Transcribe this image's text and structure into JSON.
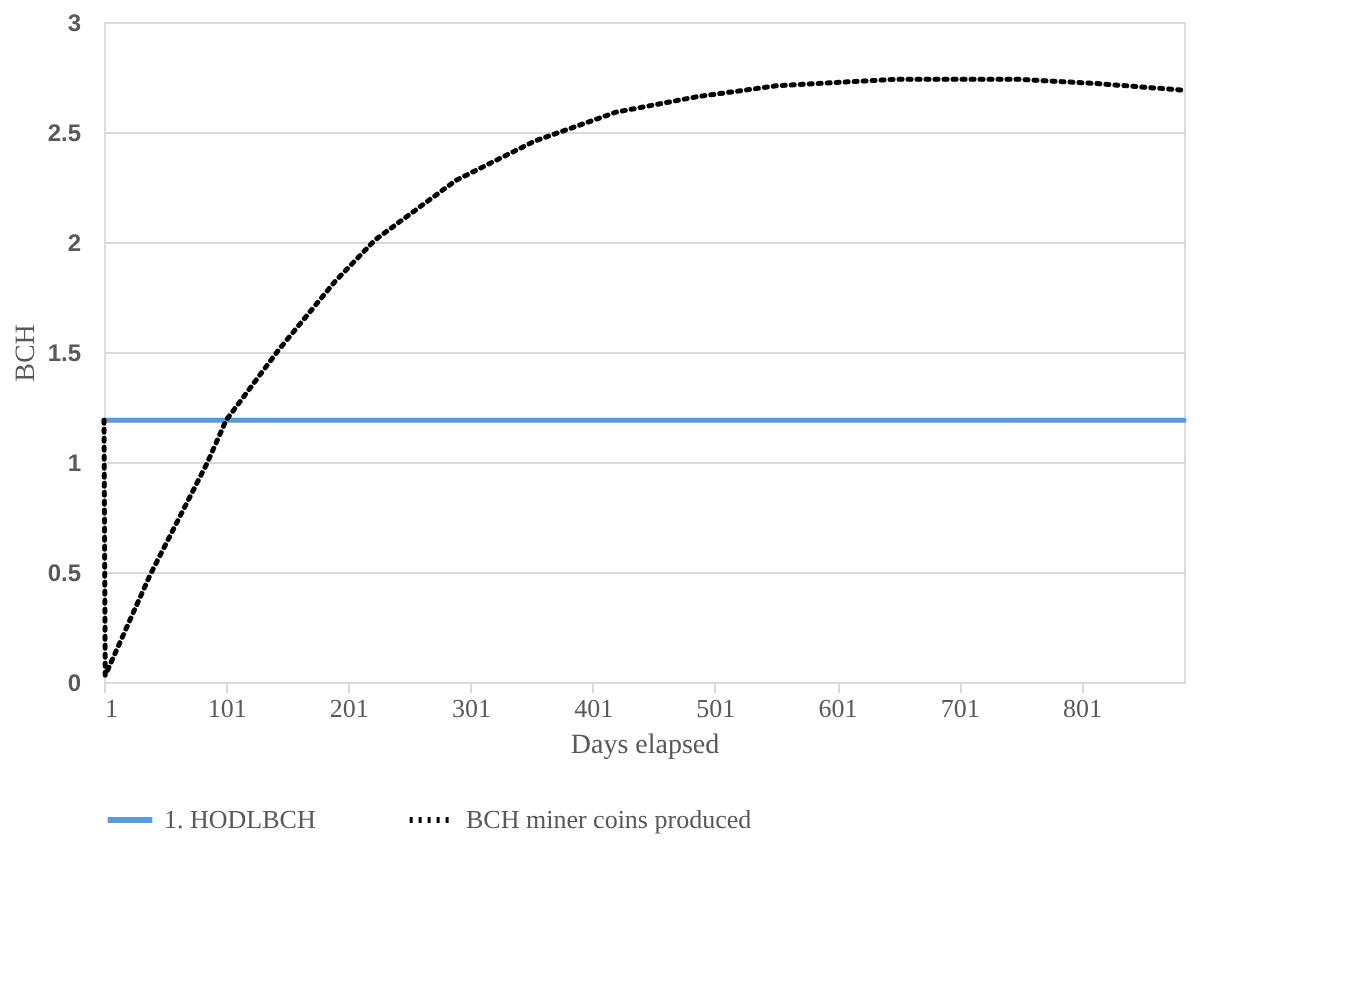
{
  "chart_data": {
    "type": "line",
    "xlabel": "Days elapsed",
    "ylabel": "BCH",
    "xlim": [
      1,
      885
    ],
    "xticks": [
      1,
      101,
      201,
      301,
      401,
      501,
      601,
      701,
      801
    ],
    "ylim": [
      0,
      3
    ],
    "yticks": [
      0,
      0.5,
      1,
      1.5,
      2,
      2.5,
      3
    ],
    "grid": "y",
    "legend": "bottom",
    "marker": "none",
    "series": [
      {
        "name": "1. HODLBCH",
        "color": "#5b9bd5",
        "line_style": "solid",
        "x": [
          1,
          885
        ],
        "values": [
          1.19,
          1.19
        ]
      },
      {
        "name": "BCH miner coins produced",
        "color": "#000000",
        "line_style": "dotted",
        "x": [
          1,
          2,
          39,
          85,
          101,
          144,
          190,
          223,
          289,
          354,
          420,
          486,
          551,
          617,
          650,
          748,
          781,
          814,
          885
        ],
        "values": [
          1.19,
          0.03,
          0.49,
          0.99,
          1.19,
          1.51,
          1.82,
          2.01,
          2.28,
          2.46,
          2.59,
          2.66,
          2.71,
          2.73,
          2.74,
          2.74,
          2.73,
          2.72,
          2.69
        ]
      }
    ]
  }
}
